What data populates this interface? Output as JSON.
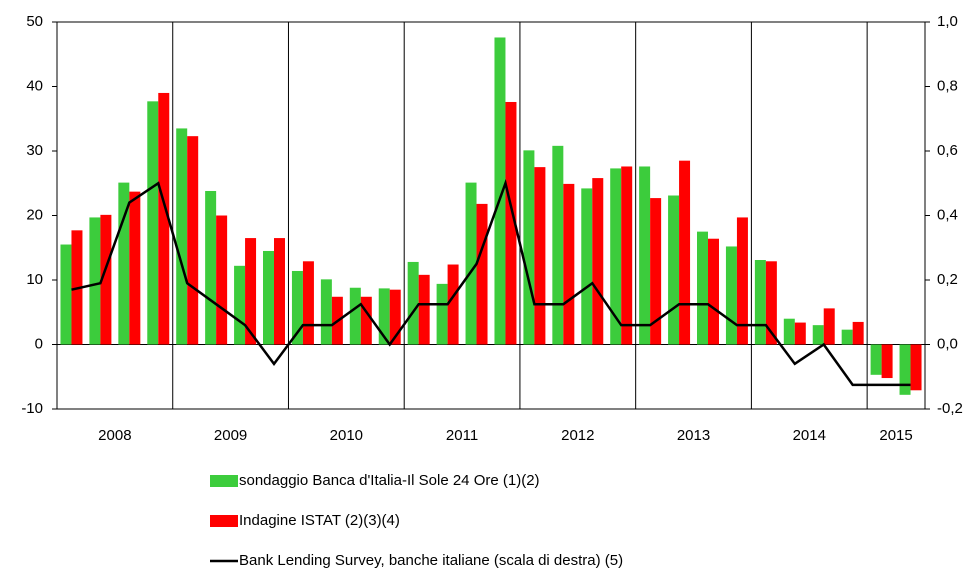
{
  "chart_data": {
    "type": "bar",
    "categories": [
      "2008",
      null,
      null,
      null,
      "2009",
      null,
      null,
      null,
      "2010",
      null,
      null,
      null,
      "2011",
      null,
      null,
      null,
      "2012",
      null,
      null,
      null,
      "2013",
      null,
      null,
      null,
      "2014",
      null,
      null,
      null,
      "2015",
      null
    ],
    "series": [
      {
        "name": "sondaggio Banca d'Italia-Il Sole 24 Ore (1)(2)",
        "color": "#3ccc3c",
        "type": "bar",
        "values": [
          15.5,
          19.7,
          25.1,
          37.7,
          33.5,
          23.8,
          12.2,
          14.5,
          11.4,
          10.1,
          8.8,
          8.7,
          12.8,
          9.4,
          25.1,
          47.6,
          30.1,
          30.8,
          24.2,
          27.3,
          27.6,
          23.1,
          17.5,
          15.2,
          13.1,
          4.0,
          3.0,
          2.3,
          -4.7,
          -7.8
        ]
      },
      {
        "name": "Indagine ISTAT (2)(3)(4)",
        "color": "#ff0000",
        "type": "bar",
        "values": [
          17.7,
          20.1,
          23.7,
          39.0,
          32.3,
          20.0,
          16.5,
          16.5,
          12.9,
          7.4,
          7.4,
          8.5,
          10.8,
          12.4,
          21.8,
          37.6,
          27.5,
          24.9,
          25.8,
          27.6,
          22.7,
          28.5,
          16.4,
          19.7,
          12.9,
          3.4,
          5.6,
          3.5,
          -5.2,
          -7.1
        ]
      },
      {
        "name": "Bank Lending Survey, banche italiane (scala di destra) (5)",
        "color": "#000000",
        "type": "line",
        "axis": "y2",
        "values": [
          0.17,
          0.19,
          0.44,
          0.5,
          0.19,
          0.125,
          0.06,
          -0.06,
          0.06,
          0.06,
          0.125,
          0.0,
          0.125,
          0.125,
          0.25,
          0.5,
          0.125,
          0.125,
          0.19,
          0.06,
          0.06,
          0.125,
          0.125,
          0.06,
          0.06,
          -0.06,
          0.0,
          -0.125,
          -0.125,
          -0.125
        ]
      }
    ],
    "ylim": [
      -10,
      50
    ],
    "yticks": [
      -10,
      0,
      10,
      20,
      30,
      40,
      50
    ],
    "y2lim": [
      -0.2,
      1.0
    ],
    "y2ticks": [
      {
        "value": -0.2,
        "label": "-0,2"
      },
      {
        "value": 0.0,
        "label": "0,0"
      },
      {
        "value": 0.2,
        "label": "0,2"
      },
      {
        "value": 0.4,
        "label": "0,4"
      },
      {
        "value": 0.6,
        "label": "0,6"
      },
      {
        "value": 0.8,
        "label": "0,8"
      },
      {
        "value": 1.0,
        "label": "1,0"
      }
    ]
  }
}
